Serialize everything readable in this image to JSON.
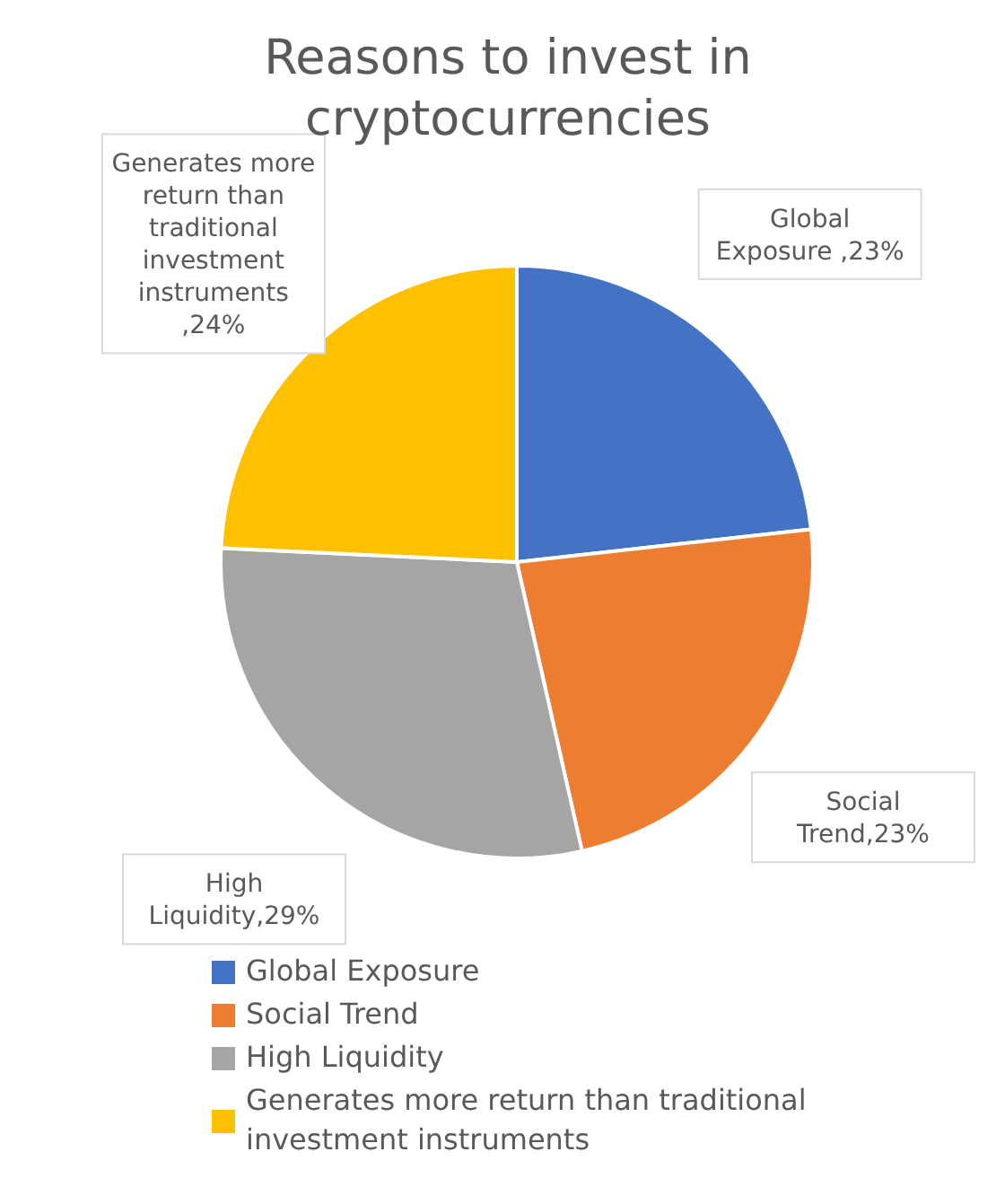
{
  "chart_data": {
    "type": "pie",
    "title": "Reasons to invest in cryptocurrencies",
    "categories": [
      "Global Exposure",
      "Social Trend",
      "High Liquidity",
      "Generates more return than traditional investment instruments"
    ],
    "values": [
      23,
      23,
      29,
      24
    ],
    "colors": [
      "#4472c4",
      "#ed7d31",
      "#a5a5a5",
      "#ffc000"
    ],
    "value_labels": [
      "Global Exposure ,23%",
      "Social Trend,23%",
      "High Liquidity,29%",
      "Generates more return than traditional investment instruments ,24%"
    ],
    "legend": "bottom"
  }
}
